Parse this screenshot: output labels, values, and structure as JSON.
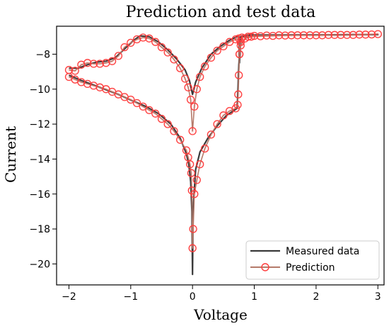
{
  "chart_data": {
    "type": "line",
    "title": "Prediction and test data",
    "xlabel": "Voltage",
    "ylabel": "Current",
    "xlim": [
      -2.2,
      3.1
    ],
    "ylim": [
      -21.2,
      -6.4
    ],
    "xticks": [
      -2,
      -1,
      0,
      1,
      2,
      3
    ],
    "yticks": [
      -20,
      -18,
      -16,
      -14,
      -12,
      -10,
      -8
    ],
    "xtick_labels": [
      "−2",
      "−1",
      "0",
      "1",
      "2",
      "3"
    ],
    "ytick_labels": [
      "−20",
      "−18",
      "−16",
      "−14",
      "−12",
      "−10",
      "−8"
    ],
    "grid": false,
    "legend_position": "bottom-right",
    "colors": {
      "measured": "#3a3a3a",
      "prediction_line": "#b57a6a",
      "prediction_marker": "#ff3b3b"
    },
    "series": [
      {
        "name": "Measured data",
        "style": "line",
        "x": [
          -2.0,
          -1.85,
          -1.7,
          -1.55,
          -1.4,
          -1.25,
          -1.1,
          -0.95,
          -0.85,
          -0.7,
          -0.55,
          -0.4,
          -0.25,
          -0.12,
          -0.05,
          0.0,
          0.05,
          0.15,
          0.3,
          0.45,
          0.6,
          0.72,
          0.75,
          0.76,
          0.78,
          0.8,
          0.9,
          1.0,
          1.3,
          1.6,
          2.0,
          2.4,
          2.8,
          3.0,
          2.6,
          2.0,
          1.5,
          1.0,
          0.85,
          0.78,
          0.75,
          0.73,
          0.72,
          0.68,
          0.55,
          0.4,
          0.25,
          0.12,
          0.05,
          0.01,
          0.0,
          -0.01,
          -0.03,
          -0.06,
          -0.1,
          -0.2,
          -0.35,
          -0.55,
          -0.75,
          -0.95,
          -1.2,
          -1.5,
          -1.8,
          -2.0
        ],
        "y": [
          -8.8,
          -8.8,
          -8.6,
          -8.45,
          -8.4,
          -8.2,
          -7.7,
          -7.2,
          -6.95,
          -7.0,
          -7.3,
          -7.75,
          -8.3,
          -8.9,
          -9.5,
          -10.3,
          -9.6,
          -8.8,
          -8.0,
          -7.55,
          -7.2,
          -7.0,
          -7.0,
          -8.5,
          -7.2,
          -6.95,
          -6.9,
          -6.9,
          -6.9,
          -6.9,
          -6.9,
          -6.9,
          -6.88,
          -6.88,
          -6.88,
          -6.9,
          -6.9,
          -6.9,
          -6.95,
          -7.0,
          -8.6,
          -10.5,
          -11.1,
          -11.2,
          -11.5,
          -12.1,
          -12.8,
          -13.6,
          -14.6,
          -16.8,
          -20.6,
          -17.0,
          -15.3,
          -14.3,
          -13.7,
          -12.8,
          -12.0,
          -11.4,
          -11.0,
          -10.7,
          -10.3,
          -9.9,
          -9.5,
          -9.2
        ]
      },
      {
        "name": "Prediction",
        "style": "line-marker",
        "x": [
          -2.0,
          -1.9,
          -1.8,
          -1.7,
          -1.6,
          -1.5,
          -1.4,
          -1.3,
          -1.2,
          -1.1,
          -1.0,
          -0.9,
          -0.8,
          -0.7,
          -0.6,
          -0.5,
          -0.4,
          -0.3,
          -0.2,
          -0.12,
          -0.07,
          -0.03,
          0.0,
          0.03,
          0.07,
          0.12,
          0.2,
          0.3,
          0.4,
          0.5,
          0.6,
          0.7,
          0.75,
          0.76,
          0.78,
          0.8,
          0.9,
          1.0,
          1.2,
          1.4,
          1.6,
          1.8,
          2.0,
          2.2,
          2.4,
          2.6,
          2.8,
          3.0,
          2.9,
          2.7,
          2.5,
          2.3,
          2.1,
          1.9,
          1.7,
          1.5,
          1.3,
          1.1,
          0.95,
          0.85,
          0.78,
          0.76,
          0.75,
          0.74,
          0.73,
          0.7,
          0.6,
          0.5,
          0.4,
          0.3,
          0.2,
          0.12,
          0.07,
          0.03,
          0.01,
          0.0,
          -0.01,
          -0.02,
          -0.04,
          -0.07,
          -0.1,
          -0.2,
          -0.3,
          -0.4,
          -0.5,
          -0.6,
          -0.7,
          -0.8,
          -0.9,
          -1.0,
          -1.1,
          -1.2,
          -1.3,
          -1.4,
          -1.5,
          -1.6,
          -1.7,
          -1.8,
          -1.9,
          -2.0
        ],
        "y": [
          -8.9,
          -8.95,
          -8.6,
          -8.5,
          -8.55,
          -8.55,
          -8.5,
          -8.4,
          -8.1,
          -7.6,
          -7.35,
          -7.15,
          -7.05,
          -7.1,
          -7.3,
          -7.6,
          -7.9,
          -8.3,
          -8.8,
          -9.4,
          -9.9,
          -10.6,
          -12.4,
          -11.0,
          -10.0,
          -9.3,
          -8.7,
          -8.2,
          -7.8,
          -7.55,
          -7.3,
          -7.15,
          -7.1,
          -8.0,
          -7.3,
          -7.05,
          -7.0,
          -6.95,
          -6.93,
          -6.92,
          -6.92,
          -6.92,
          -6.92,
          -6.9,
          -6.9,
          -6.9,
          -6.88,
          -6.85,
          -6.87,
          -6.88,
          -6.9,
          -6.9,
          -6.92,
          -6.92,
          -6.92,
          -6.93,
          -6.95,
          -6.97,
          -7.0,
          -7.1,
          -7.5,
          -8.0,
          -9.2,
          -10.3,
          -10.9,
          -11.1,
          -11.25,
          -11.5,
          -12.0,
          -12.6,
          -13.4,
          -14.3,
          -15.2,
          -16.0,
          -18.0,
          -19.1,
          -15.8,
          -14.8,
          -14.3,
          -13.9,
          -13.5,
          -12.9,
          -12.4,
          -12.0,
          -11.7,
          -11.4,
          -11.2,
          -11.0,
          -10.8,
          -10.6,
          -10.45,
          -10.3,
          -10.15,
          -10.0,
          -9.9,
          -9.8,
          -9.7,
          -9.6,
          -9.45,
          -9.3
        ]
      }
    ]
  }
}
